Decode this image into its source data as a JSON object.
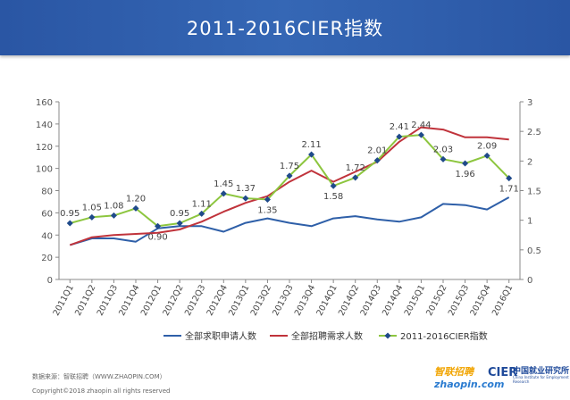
{
  "header": {
    "title": "2011-2016CIER指数"
  },
  "footer": {
    "source": "数据来源：智联招聘（WWW.ZHAOPIN.COM）",
    "copyright": "Copyright©2018 zhaopin all rights reserved",
    "logo_zhaopin": "zhaopin.com",
    "logo_zhaopin_cn": "智联招聘",
    "logo_cier": "CIER",
    "logo_cier_name": "中国就业研究所",
    "logo_cier_en": "China Institute for Employment Research"
  },
  "chart_data": {
    "type": "line",
    "categories": [
      "2011Q1",
      "2011Q2",
      "2011Q3",
      "2011Q4",
      "2012Q1",
      "2012Q2",
      "2012Q3",
      "2012Q4",
      "2013Q1",
      "2013Q2",
      "2013Q3",
      "2013Q4",
      "2014Q1",
      "2014Q2",
      "2014Q3",
      "2014Q4",
      "2015Q1",
      "2015Q2",
      "2015Q3",
      "2015Q4",
      "2016Q1"
    ],
    "y_left": {
      "min": 0,
      "max": 160,
      "ticks": [
        0,
        20,
        40,
        60,
        80,
        100,
        120,
        140,
        160
      ]
    },
    "y_right": {
      "min": 0,
      "max": 3,
      "ticks": [
        "0",
        "0.5",
        "1",
        "1.5",
        "2",
        "2.5",
        "3"
      ]
    },
    "grid": false,
    "legend_position": "bottom",
    "series": [
      {
        "name": "全部求职申请人数",
        "axis": "left",
        "color": "#2e5fa8",
        "values": [
          31,
          37,
          37,
          34,
          46,
          48,
          48,
          43,
          51,
          55,
          51,
          48,
          55,
          57,
          54,
          52,
          56,
          68,
          67,
          63,
          74
        ]
      },
      {
        "name": "全部招聘需求人数",
        "axis": "left",
        "color": "#c0333b",
        "values": [
          31,
          38,
          40,
          41,
          42,
          45,
          52,
          61,
          69,
          75,
          88,
          98,
          88,
          97,
          106,
          124,
          137,
          135,
          128,
          128,
          126
        ]
      },
      {
        "name": "2011-2016CIER指数",
        "axis": "right",
        "color": "#8dc63f",
        "marker_color": "#1f4a8a",
        "values": [
          0.95,
          1.05,
          1.08,
          1.2,
          0.9,
          0.95,
          1.11,
          1.45,
          1.37,
          1.35,
          1.75,
          2.11,
          1.58,
          1.72,
          2.01,
          2.41,
          2.44,
          2.03,
          1.96,
          2.09,
          1.71
        ],
        "labels": [
          "0.95",
          "1.05",
          "1.08",
          "1.20",
          "0.90",
          "0.95",
          "1.11",
          "1.45",
          "1.37",
          "1.35",
          "1.75",
          "2.11",
          "1.58",
          "1.72",
          "2.01",
          "2.41",
          "2.44",
          "2.03",
          "1.96",
          "2.09",
          "1.71"
        ]
      }
    ]
  }
}
